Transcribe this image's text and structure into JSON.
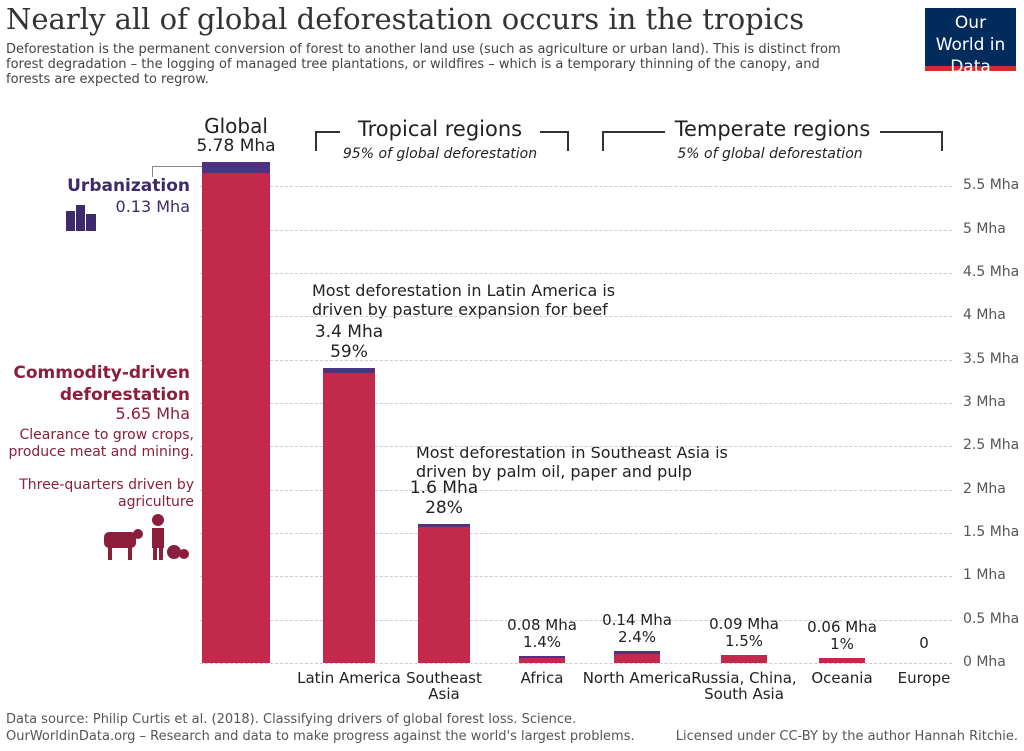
{
  "chart_data": {
    "type": "bar",
    "stacked": true,
    "title": "Nearly all of global deforestation occurs in the tropics",
    "subtitle": "Deforestation is the permanent conversion of forest to another land use (such  as agriculture or urban land). This is distinct from forest  degradation – the logging of managed tree plantations, or wildfires – which is a temporary thinning of the canopy, and forests are expected to regrow.",
    "logo": "Our World in Data",
    "categories": [
      "Global",
      "Latin America",
      "Southeast Asia",
      "Africa",
      "North America",
      "Russia, China, South Asia",
      "Oceania",
      "Europe"
    ],
    "series": [
      {
        "name": "Commodity-driven deforestation",
        "color": "#c2294b",
        "values": [
          5.65,
          3.35,
          1.57,
          0.06,
          0.1,
          0.09,
          0.06,
          0
        ],
        "value_labels": [
          "5.65 Mha",
          null,
          null,
          null,
          null,
          null,
          null,
          null
        ]
      },
      {
        "name": "Urbanization",
        "color": "#4f3382",
        "values": [
          0.13,
          0.05,
          0.03,
          0.02,
          0.04,
          0,
          0,
          0
        ],
        "value_labels": [
          "0.13 Mha",
          null,
          null,
          null,
          null,
          null,
          null,
          null
        ]
      }
    ],
    "totals": [
      5.78,
      3.4,
      1.6,
      0.08,
      0.14,
      0.09,
      0.06,
      0
    ],
    "total_labels": [
      "5.78 Mha",
      "3.4 Mha",
      "1.6 Mha",
      "0.08 Mha",
      "0.14 Mha",
      "0.09 Mha",
      "0.06 Mha",
      "0"
    ],
    "shares": [
      null,
      59,
      28,
      1.4,
      2.4,
      1.5,
      1,
      null
    ],
    "share_labels": [
      null,
      "59%",
      "28%",
      "1.4%",
      "2.4%",
      "1.5%",
      "1%",
      null
    ],
    "groups": [
      {
        "name": "Tropical regions",
        "note": "95% of global deforestation"
      },
      {
        "name": "Temperate regions",
        "note": "5% of global deforestation"
      }
    ],
    "annotations": [
      "Most deforestation in Latin America is driven by pasture expansion for beef",
      "Most deforestation in Southeast Asia is driven by palm oil, paper and pulp",
      "Clearance to grow crops, produce meat and mining.",
      "Three-quarters driven by agriculture"
    ],
    "ylim": [
      0,
      6
    ],
    "yticks": [
      {
        "value": 0,
        "label": "0 Mha"
      },
      {
        "value": 0.5,
        "label": "0.5 Mha"
      },
      {
        "value": 1,
        "label": "1 Mha"
      },
      {
        "value": 1.5,
        "label": "1.5 Mha"
      },
      {
        "value": 2,
        "label": "2 Mha"
      },
      {
        "value": 2.5,
        "label": "2.5 Mha"
      },
      {
        "value": 3,
        "label": "3 Mha"
      },
      {
        "value": 3.5,
        "label": "3.5 Mha"
      },
      {
        "value": 4,
        "label": "4 Mha"
      },
      {
        "value": 4.5,
        "label": "4.5 Mha"
      },
      {
        "value": 5,
        "label": "5 Mha"
      },
      {
        "value": 5.5,
        "label": "5.5 Mha"
      }
    ],
    "grid": true,
    "source": "Data source: Philip Curtis et al. (2018). Classifying drivers of global forest loss. Science.",
    "footer": "OurWorldinData.org – Research and data to make progress against the world's largest problems.",
    "license": "Licensed under CC-BY by the author Hannah Ritchie."
  }
}
